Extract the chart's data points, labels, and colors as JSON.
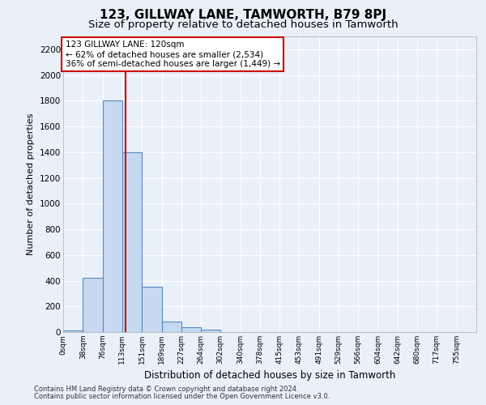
{
  "title": "123, GILLWAY LANE, TAMWORTH, B79 8PJ",
  "subtitle": "Size of property relative to detached houses in Tamworth",
  "xlabel": "Distribution of detached houses by size in Tamworth",
  "ylabel": "Number of detached properties",
  "bin_labels": [
    "0sqm",
    "38sqm",
    "76sqm",
    "113sqm",
    "151sqm",
    "189sqm",
    "227sqm",
    "264sqm",
    "302sqm",
    "340sqm",
    "378sqm",
    "415sqm",
    "453sqm",
    "491sqm",
    "529sqm",
    "566sqm",
    "604sqm",
    "642sqm",
    "680sqm",
    "717sqm",
    "755sqm"
  ],
  "bin_edges": [
    0,
    38,
    76,
    113,
    151,
    189,
    227,
    264,
    302,
    340,
    378,
    415,
    453,
    491,
    529,
    566,
    604,
    642,
    680,
    717,
    755
  ],
  "bar_heights": [
    15,
    420,
    1800,
    1400,
    350,
    80,
    35,
    20,
    0,
    0,
    0,
    0,
    0,
    0,
    0,
    0,
    0,
    0,
    0,
    0
  ],
  "bar_color": "#c6d9f0",
  "bar_edge_color": "#5a8ac6",
  "vline_x": 120,
  "vline_color": "#cc0000",
  "ylim": [
    0,
    2300
  ],
  "xlim": [
    0,
    793
  ],
  "annotation_text": "123 GILLWAY LANE: 120sqm\n← 62% of detached houses are smaller (2,534)\n36% of semi-detached houses are larger (1,449) →",
  "annotation_box_color": "#cc0000",
  "footer_line1": "Contains HM Land Registry data © Crown copyright and database right 2024.",
  "footer_line2": "Contains public sector information licensed under the Open Government Licence v3.0.",
  "bg_color": "#eaf0f8",
  "plot_bg_color": "#eaf0f8",
  "grid_color": "#ffffff",
  "title_fontsize": 11,
  "subtitle_fontsize": 9.5,
  "yticks": [
    0,
    200,
    400,
    600,
    800,
    1000,
    1200,
    1400,
    1600,
    1800,
    2000,
    2200
  ]
}
